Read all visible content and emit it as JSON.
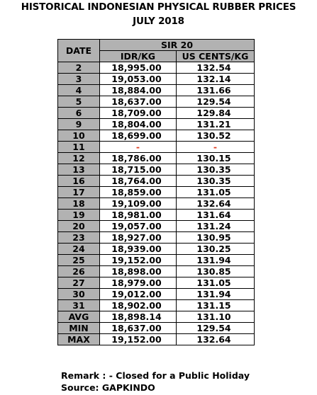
{
  "title_line1": "HISTORICAL INDONESIAN PHYSICAL RUBBER PRICES",
  "title_line2": "JULY 2018",
  "table": {
    "date_header": "DATE",
    "group_header": "SIR 20",
    "col_idr": "IDR/KG",
    "col_usd": "US CENTS/KG",
    "rows": [
      {
        "date": "2",
        "idr": "18,995.00",
        "usd": "132.54"
      },
      {
        "date": "3",
        "idr": "19,053.00",
        "usd": "132.14"
      },
      {
        "date": "4",
        "idr": "18,884.00",
        "usd": "131.66"
      },
      {
        "date": "5",
        "idr": "18,637.00",
        "usd": "129.54"
      },
      {
        "date": "6",
        "idr": "18,709.00",
        "usd": "129.84"
      },
      {
        "date": "9",
        "idr": "18,804.00",
        "usd": "131.21"
      },
      {
        "date": "10",
        "idr": "18,699.00",
        "usd": "130.52"
      },
      {
        "date": "11",
        "idr": "-",
        "usd": "-"
      },
      {
        "date": "12",
        "idr": "18,786.00",
        "usd": "130.15"
      },
      {
        "date": "13",
        "idr": "18,715.00",
        "usd": "130.35"
      },
      {
        "date": "16",
        "idr": "18,764.00",
        "usd": "130.35"
      },
      {
        "date": "17",
        "idr": "18,859.00",
        "usd": "131.05"
      },
      {
        "date": "18",
        "idr": "19,109.00",
        "usd": "132.64"
      },
      {
        "date": "19",
        "idr": "18,981.00",
        "usd": "131.64"
      },
      {
        "date": "20",
        "idr": "19,057.00",
        "usd": "131.24"
      },
      {
        "date": "23",
        "idr": "18,927.00",
        "usd": "130.95"
      },
      {
        "date": "24",
        "idr": "18,939.00",
        "usd": "130.25"
      },
      {
        "date": "25",
        "idr": "19,152.00",
        "usd": "131.94"
      },
      {
        "date": "26",
        "idr": "18,898.00",
        "usd": "130.85"
      },
      {
        "date": "27",
        "idr": "18,979.00",
        "usd": "131.05"
      },
      {
        "date": "30",
        "idr": "19,012.00",
        "usd": "131.94"
      },
      {
        "date": "31",
        "idr": "18,902.00",
        "usd": "131.15"
      }
    ],
    "summary": [
      {
        "label": "AVG",
        "idr": "18,898.14",
        "usd": "131.10"
      },
      {
        "label": "MIN",
        "idr": "18,637.00",
        "usd": "129.54"
      },
      {
        "label": "MAX",
        "idr": "19,152.00",
        "usd": "132.64"
      }
    ]
  },
  "remark": "Remark : - Closed for a Public Holiday",
  "source": "Source: GAPKINDO",
  "colors": {
    "header_fill": "#b2b2b2",
    "holiday_dash": "#e03a1e"
  }
}
